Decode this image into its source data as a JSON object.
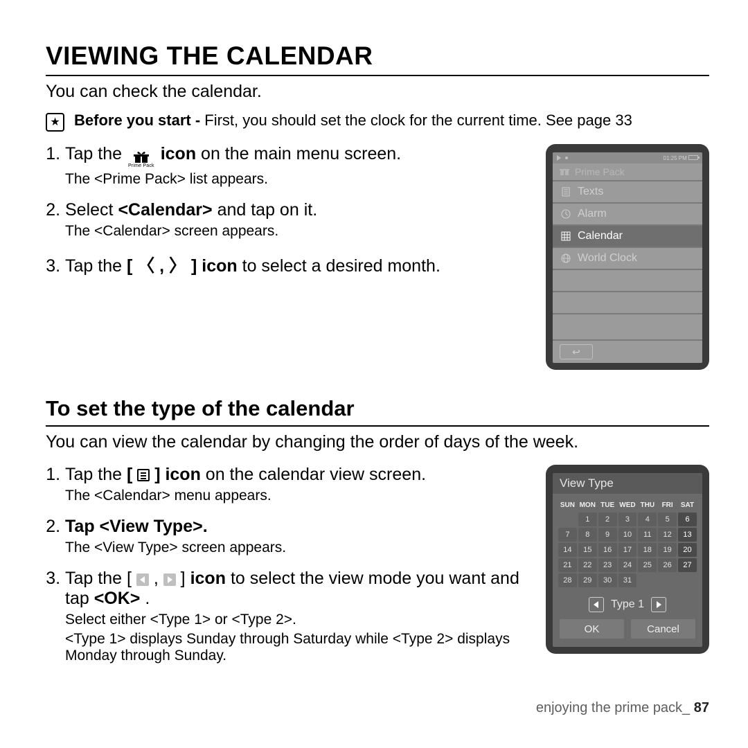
{
  "title": "VIEWING THE CALENDAR",
  "lead": "You can check the calendar.",
  "note_bold": "Before you start - ",
  "note_rest": "First, you should set the clock for the current time. See page 33",
  "step1_a": "Tap the ",
  "step1_b": " icon",
  "step1_c": " on the main menu screen.",
  "gift_caption": "Prime Pack",
  "step1_sub": "The <Prime Pack> list appears.",
  "step2_a": "Select ",
  "step2_b": "<Calendar>",
  "step2_c": " and tap on it.",
  "step2_sub": "The <Calendar> screen appears.",
  "step3_a": "Tap the ",
  "step3_b": "[ 〈 , 〉 ] icon",
  "step3_c": " to select a desired month.",
  "device1": {
    "time": "01:25 PM",
    "header": "Prime Pack",
    "items": [
      {
        "label": "Texts",
        "selected": false,
        "icon": "doc"
      },
      {
        "label": "Alarm",
        "selected": false,
        "icon": "clock"
      },
      {
        "label": "Calendar",
        "selected": true,
        "icon": "grid"
      },
      {
        "label": "World Clock",
        "selected": false,
        "icon": "globe"
      }
    ]
  },
  "h2": "To set the type of the calendar",
  "lead2": "You can view the calendar by changing the order of days of the week.",
  "s2_1a": "Tap the ",
  "s2_1b": " [ ",
  "s2_1c": " ] icon",
  "s2_1d": " on the calendar view screen.",
  "s2_1_sub": "The <Calendar> menu appears.",
  "s2_2": "Tap <View Type>.",
  "s2_2_sub": "The <View Type> screen appears.",
  "s2_3a": "Tap the [ ",
  "s2_3b": " , ",
  "s2_3c": " ] ",
  "s2_3d": "icon",
  "s2_3e": " to select the view mode you want and tap ",
  "s2_3f": "<OK>",
  "s2_3g": ".",
  "s2_3_sub1": "Select either <Type 1> or <Type 2>.",
  "s2_3_sub2": "<Type 1> displays Sunday through Saturday while <Type 2> displays Monday through Sunday.",
  "device2": {
    "header": "View Type",
    "dow": [
      "SUN",
      "MON",
      "TUE",
      "WED",
      "THU",
      "FRI",
      "SAT"
    ],
    "weeks": [
      [
        "",
        "1",
        "2",
        "3",
        "4",
        "5",
        "6"
      ],
      [
        "7",
        "8",
        "9",
        "10",
        "11",
        "12",
        "13"
      ],
      [
        "14",
        "15",
        "16",
        "17",
        "18",
        "19",
        "20"
      ],
      [
        "21",
        "22",
        "23",
        "24",
        "25",
        "26",
        "27"
      ],
      [
        "28",
        "29",
        "30",
        "31",
        "",
        "",
        ""
      ]
    ],
    "type_label": "Type 1",
    "ok": "OK",
    "cancel": "Cancel"
  },
  "footer_a": "enjoying the prime pack_ ",
  "footer_b": "87"
}
